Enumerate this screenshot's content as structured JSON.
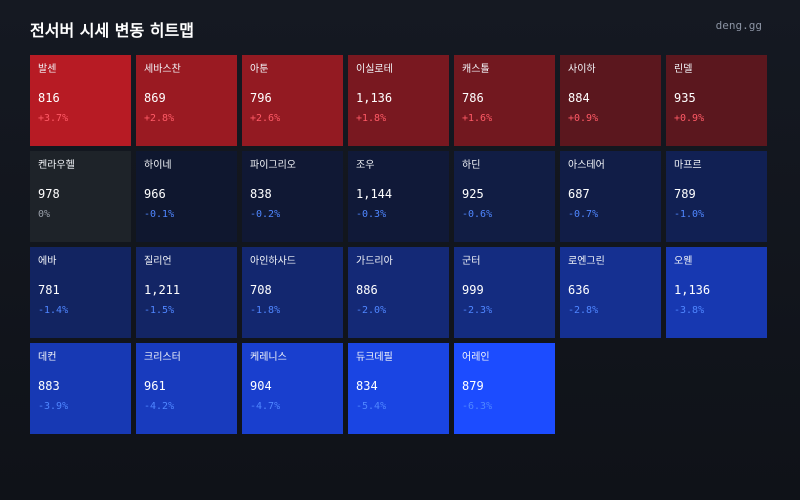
{
  "header": {
    "title": "전서버 시세 변동 히트맵",
    "brand": "deng.gg"
  },
  "colors": {
    "positive_text": "#ff5a66",
    "neutral_text": "#9aa0aa",
    "negative_text": "#4f86ff",
    "neutral_bg": "#1e2329"
  },
  "servers": [
    {
      "name": "발센",
      "price": "816",
      "change": "+3.7%",
      "pct": 3.7
    },
    {
      "name": "세바스찬",
      "price": "869",
      "change": "+2.8%",
      "pct": 2.8
    },
    {
      "name": "아툰",
      "price": "796",
      "change": "+2.6%",
      "pct": 2.6
    },
    {
      "name": "이실로테",
      "price": "1,136",
      "change": "+1.8%",
      "pct": 1.8
    },
    {
      "name": "캐스톨",
      "price": "786",
      "change": "+1.6%",
      "pct": 1.6
    },
    {
      "name": "사이하",
      "price": "884",
      "change": "+0.9%",
      "pct": 0.9
    },
    {
      "name": "린델",
      "price": "935",
      "change": "+0.9%",
      "pct": 0.9
    },
    {
      "name": "켄라우헬",
      "price": "978",
      "change": "0%",
      "pct": 0
    },
    {
      "name": "하이네",
      "price": "966",
      "change": "-0.1%",
      "pct": -0.1
    },
    {
      "name": "파이그리오",
      "price": "838",
      "change": "-0.2%",
      "pct": -0.2
    },
    {
      "name": "조우",
      "price": "1,144",
      "change": "-0.3%",
      "pct": -0.3
    },
    {
      "name": "하딘",
      "price": "925",
      "change": "-0.6%",
      "pct": -0.6
    },
    {
      "name": "아스테어",
      "price": "687",
      "change": "-0.7%",
      "pct": -0.7
    },
    {
      "name": "마프르",
      "price": "789",
      "change": "-1.0%",
      "pct": -1.0
    },
    {
      "name": "에바",
      "price": "781",
      "change": "-1.4%",
      "pct": -1.4
    },
    {
      "name": "질리언",
      "price": "1,211",
      "change": "-1.5%",
      "pct": -1.5
    },
    {
      "name": "아인하사드",
      "price": "708",
      "change": "-1.8%",
      "pct": -1.8
    },
    {
      "name": "가드리아",
      "price": "886",
      "change": "-2.0%",
      "pct": -2.0
    },
    {
      "name": "군터",
      "price": "999",
      "change": "-2.3%",
      "pct": -2.3
    },
    {
      "name": "로엔그린",
      "price": "636",
      "change": "-2.8%",
      "pct": -2.8
    },
    {
      "name": "오웬",
      "price": "1,136",
      "change": "-3.8%",
      "pct": -3.8
    },
    {
      "name": "데컨",
      "price": "883",
      "change": "-3.9%",
      "pct": -3.9
    },
    {
      "name": "크리스터",
      "price": "961",
      "change": "-4.2%",
      "pct": -4.2
    },
    {
      "name": "케레니스",
      "price": "904",
      "change": "-4.7%",
      "pct": -4.7
    },
    {
      "name": "듀크데필",
      "price": "834",
      "change": "-5.4%",
      "pct": -5.4
    },
    {
      "name": "어레인",
      "price": "879",
      "change": "-6.3%",
      "pct": -6.3
    }
  ]
}
